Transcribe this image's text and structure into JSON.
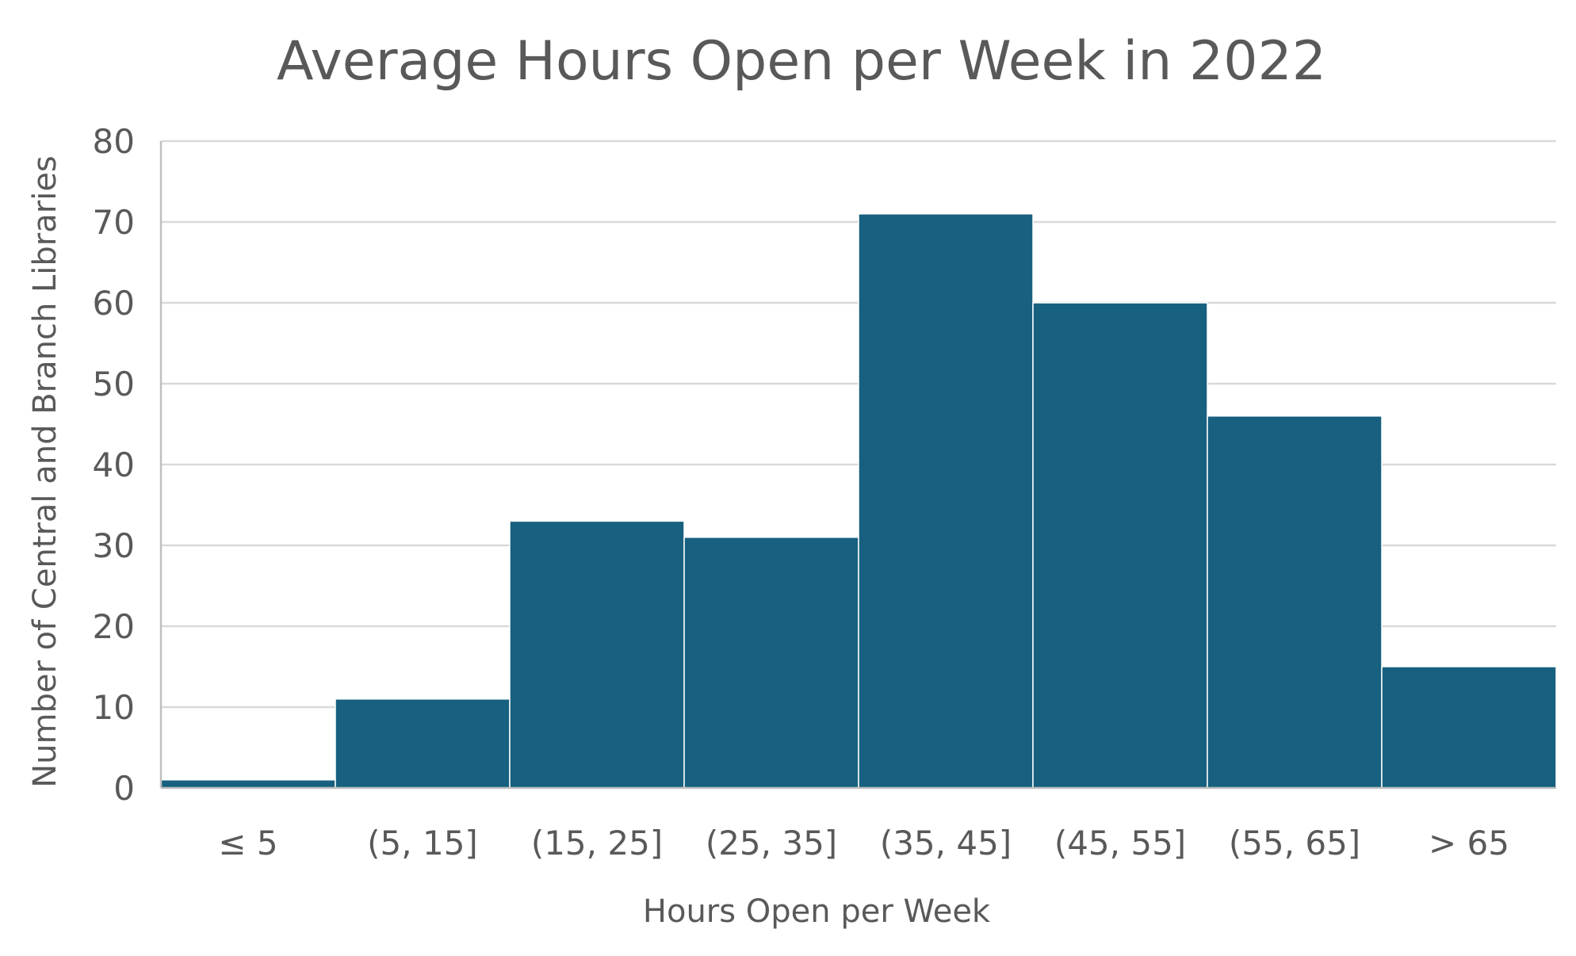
{
  "chart_data": {
    "type": "bar",
    "title": "Average Hours Open per Week in 2022",
    "xlabel": "Hours Open per Week",
    "ylabel": "Number of Central and Branch Libraries",
    "categories": [
      "≤ 5",
      "(5, 15]",
      "(15, 25]",
      "(25, 35]",
      "(35, 45]",
      "(45, 55]",
      "(55, 65]",
      "> 65"
    ],
    "values": [
      1,
      11,
      33,
      31,
      71,
      60,
      46,
      15
    ],
    "ylim": [
      0,
      80
    ],
    "yticks": [
      0,
      10,
      20,
      30,
      40,
      50,
      60,
      70,
      80
    ],
    "grid": true,
    "legend": "none",
    "bar_color": "#17607f"
  }
}
